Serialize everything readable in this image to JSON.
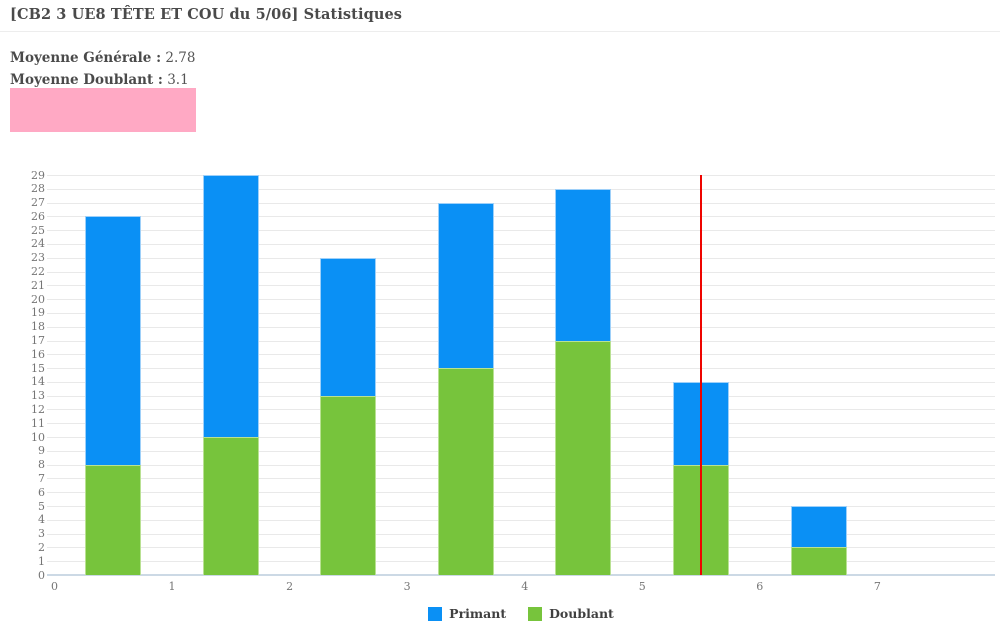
{
  "header": {
    "title": "[CB2 3 UE8 TÊTE ET COU du 5/06] Statistiques"
  },
  "stats": {
    "moyenne_generale": {
      "label": "Moyenne Générale :",
      "value": "2.78"
    },
    "moyenne_doublant": {
      "label": "Moyenne Doublant :",
      "value": "3.1"
    }
  },
  "highlight_box": {
    "color": "#ffa9c4"
  },
  "chart_data": {
    "type": "bar",
    "stacked": true,
    "title": "",
    "xlabel": "",
    "ylabel": "",
    "categories": [
      0.5,
      1.5,
      2.5,
      3.5,
      4.5,
      5.5,
      6.5
    ],
    "series": [
      {
        "name": "Doublant",
        "color": "#77c43c",
        "border": "#b9e193",
        "values": [
          8,
          10,
          13,
          15,
          17,
          8,
          2
        ]
      },
      {
        "name": "Primant",
        "color": "#0a90f5",
        "border": "#9ed0f9",
        "values": [
          18,
          19,
          10,
          12,
          11,
          6,
          3
        ]
      }
    ],
    "totals": [
      26,
      29,
      23,
      27,
      28,
      14,
      5
    ],
    "xlim": [
      0,
      8
    ],
    "ylim": [
      0,
      29
    ],
    "x_ticks": [
      0,
      1,
      2,
      3,
      4,
      5,
      6,
      7
    ],
    "y_tick_step": 1,
    "grid": "horizontal",
    "vertical_marker": {
      "x": 5.5,
      "color": "#ee0400"
    },
    "legend_position": "bottom-center",
    "legend": [
      {
        "label": "Primant",
        "color": "#0a90f5"
      },
      {
        "label": "Doublant",
        "color": "#77c43c"
      }
    ]
  }
}
